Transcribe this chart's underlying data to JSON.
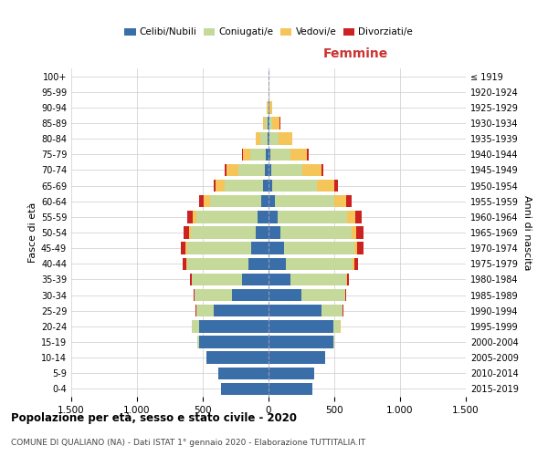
{
  "age_groups": [
    "0-4",
    "5-9",
    "10-14",
    "15-19",
    "20-24",
    "25-29",
    "30-34",
    "35-39",
    "40-44",
    "45-49",
    "50-54",
    "55-59",
    "60-64",
    "65-69",
    "70-74",
    "75-79",
    "80-84",
    "85-89",
    "90-94",
    "95-99",
    "100+"
  ],
  "birth_years": [
    "2015-2019",
    "2010-2014",
    "2005-2009",
    "2000-2004",
    "1995-1999",
    "1990-1994",
    "1985-1989",
    "1980-1984",
    "1975-1979",
    "1970-1974",
    "1965-1969",
    "1960-1964",
    "1955-1959",
    "1950-1954",
    "1945-1949",
    "1940-1944",
    "1935-1939",
    "1930-1934",
    "1925-1929",
    "1920-1924",
    "≤ 1919"
  ],
  "male": {
    "celibe": [
      360,
      380,
      470,
      530,
      530,
      420,
      280,
      200,
      150,
      130,
      100,
      80,
      55,
      40,
      30,
      20,
      10,
      5,
      3,
      1,
      0
    ],
    "coniugato": [
      0,
      0,
      2,
      10,
      50,
      130,
      280,
      380,
      470,
      490,
      490,
      470,
      390,
      290,
      200,
      120,
      55,
      20,
      5,
      0,
      0
    ],
    "vedovo": [
      0,
      0,
      0,
      0,
      0,
      1,
      2,
      3,
      5,
      10,
      15,
      25,
      50,
      70,
      90,
      55,
      30,
      15,
      5,
      0,
      0
    ],
    "divorziato": [
      0,
      0,
      0,
      0,
      1,
      3,
      8,
      15,
      25,
      35,
      40,
      40,
      30,
      20,
      15,
      8,
      3,
      2,
      0,
      0,
      0
    ]
  },
  "female": {
    "nubile": [
      330,
      350,
      430,
      490,
      490,
      400,
      250,
      170,
      130,
      115,
      90,
      70,
      50,
      30,
      20,
      15,
      8,
      5,
      4,
      2,
      0
    ],
    "coniugata": [
      0,
      0,
      2,
      10,
      55,
      160,
      330,
      420,
      510,
      540,
      540,
      530,
      450,
      340,
      240,
      150,
      70,
      25,
      5,
      0,
      0
    ],
    "vedova": [
      0,
      0,
      0,
      0,
      1,
      2,
      3,
      5,
      10,
      20,
      35,
      60,
      90,
      130,
      140,
      130,
      100,
      55,
      20,
      2,
      0
    ],
    "divorziata": [
      0,
      0,
      0,
      0,
      1,
      4,
      10,
      18,
      30,
      45,
      55,
      50,
      40,
      25,
      18,
      10,
      5,
      3,
      1,
      0,
      0
    ]
  },
  "colors": {
    "celibe": "#3a6ea8",
    "coniugato": "#c5d99a",
    "vedovo": "#f5c55a",
    "divorziato": "#cc2222"
  },
  "title": "Popolazione per età, sesso e stato civile - 2020",
  "subtitle": "COMUNE DI QUALIANO (NA) - Dati ISTAT 1° gennaio 2020 - Elaborazione TUTTITALIA.IT",
  "label_femmine": "Femmine",
  "ylabel_left": "Fasce di età",
  "ylabel_right": "Anni di nascita",
  "legend_labels": [
    "Celibi/Nubili",
    "Coniugati/e",
    "Vedovi/e",
    "Divorziati/e"
  ],
  "xlim": 1500,
  "xtick_labels": [
    "1.500",
    "1.000",
    "500",
    "0",
    "500",
    "1.000",
    "1.500"
  ],
  "xtick_vals": [
    -1500,
    -1000,
    -500,
    0,
    500,
    1000,
    1500
  ],
  "bg_color": "#ffffff",
  "grid_color": "#cccccc"
}
